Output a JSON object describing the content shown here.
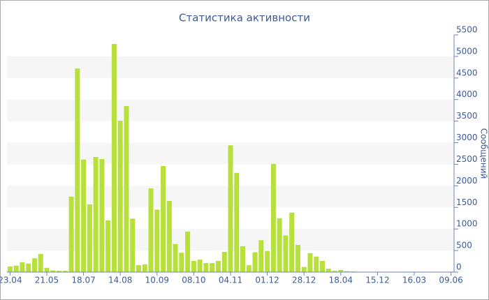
{
  "chart_data": {
    "type": "bar",
    "title": "Статистика активности",
    "y_axis_label": "Сообщений",
    "categories": [
      "23.04",
      null,
      null,
      null,
      null,
      null,
      "21.05",
      null,
      null,
      null,
      null,
      null,
      "18.07",
      null,
      null,
      null,
      null,
      null,
      "14.08",
      null,
      null,
      null,
      null,
      null,
      "10.09",
      null,
      null,
      null,
      null,
      null,
      "08.10",
      null,
      null,
      null,
      null,
      null,
      "04.11",
      null,
      null,
      null,
      null,
      null,
      "01.12",
      null,
      null,
      null,
      null,
      null,
      "28.12",
      null,
      null,
      null,
      null,
      null,
      "18.04",
      null,
      null,
      null,
      null,
      null,
      "15.12",
      null,
      null,
      null,
      null,
      null,
      "16.03",
      null,
      null,
      null,
      null,
      null,
      "09.06"
    ],
    "values": [
      130,
      150,
      230,
      200,
      320,
      420,
      100,
      40,
      30,
      30,
      1750,
      4720,
      2610,
      1570,
      2670,
      2620,
      1200,
      5290,
      3510,
      3850,
      1240,
      160,
      180,
      1940,
      1450,
      2460,
      1650,
      650,
      450,
      940,
      260,
      290,
      210,
      210,
      260,
      470,
      2940,
      2300,
      600,
      160,
      460,
      740,
      490,
      2510,
      1250,
      850,
      1380,
      630,
      120,
      440,
      360,
      260,
      80,
      30,
      50,
      20,
      15,
      10,
      10,
      10,
      10,
      10,
      10,
      10,
      10,
      10,
      10,
      10,
      10,
      10,
      10,
      10,
      10
    ],
    "color": "#b8e03c",
    "ylim": [
      0,
      5500
    ],
    "yticks": [
      0,
      500,
      1000,
      1500,
      2000,
      2500,
      3000,
      3500,
      4000,
      4500,
      5000,
      5500
    ],
    "y_axis_side": "right",
    "grid": true
  }
}
